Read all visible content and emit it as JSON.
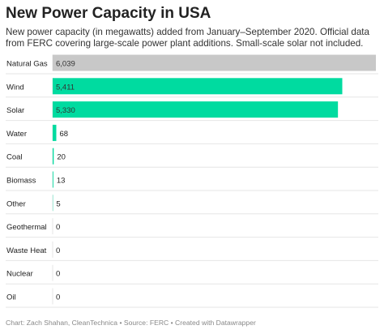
{
  "title": "New Power Capacity in USA",
  "subtitle": "New power capacity (in megawatts) added from January–September 2020. Official data from FERC covering large-scale power plant additions. Small-scale solar not included.",
  "footer": "Chart: Zach Shahan, CleanTechnica • Source: FERC • Created with Datawrapper",
  "colors": {
    "highlight": "#00dba0",
    "neutral": "#c8c8c8",
    "gridline": "#e6e6e6"
  },
  "chart_data": {
    "type": "bar",
    "orientation": "horizontal",
    "categories": [
      "Natural Gas",
      "Wind",
      "Solar",
      "Water",
      "Coal",
      "Biomass",
      "Other",
      "Geothermal",
      "Waste Heat",
      "Nuclear",
      "Oil"
    ],
    "values": [
      6039,
      5411,
      5330,
      68,
      20,
      13,
      5,
      0,
      0,
      0,
      0
    ],
    "value_labels": [
      "6,039",
      "5,411",
      "5,330",
      "68",
      "20",
      "13",
      "5",
      "0",
      "0",
      "0",
      "0"
    ],
    "bar_colors": [
      "#c8c8c8",
      "#00dba0",
      "#00dba0",
      "#00dba0",
      "#00dba0",
      "#00dba0",
      "#00dba0",
      "#00dba0",
      "#00dba0",
      "#00dba0",
      "#00dba0"
    ],
    "xlim": [
      0,
      6039
    ],
    "grid": false
  }
}
